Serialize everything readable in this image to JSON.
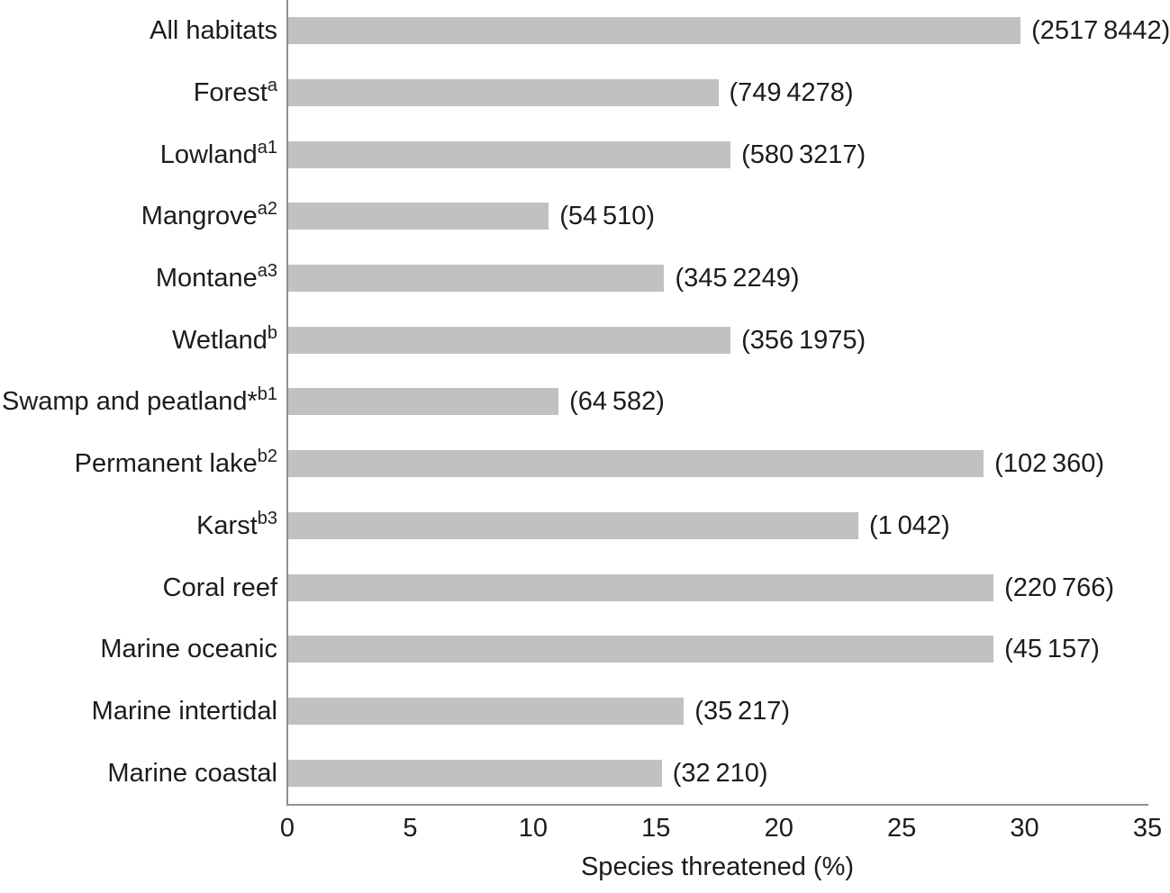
{
  "chart_data": {
    "type": "bar",
    "orientation": "horizontal",
    "title": "",
    "xlabel": "Species threatened (%)",
    "ylabel": "",
    "xlim": [
      0,
      35
    ],
    "xticks": [
      "0",
      "5",
      "10",
      "15",
      "20",
      "25",
      "30",
      "35"
    ],
    "xtick_values": [
      0,
      5,
      10,
      15,
      20,
      25,
      30,
      35
    ],
    "grid": false,
    "legend": "none",
    "bar_color": "#c1c1c1",
    "axis_color": "#8f8f8f",
    "text_color": "#1c1c1c",
    "categories": [
      {
        "label": "All habitats",
        "sup": "",
        "value": 29.8,
        "annotation": "(2517 8442)"
      },
      {
        "label": "Forest",
        "sup": "a",
        "value": 17.5,
        "annotation": "(749 4278)"
      },
      {
        "label": "Lowland",
        "sup": "a1",
        "value": 18.0,
        "annotation": "(580 3217)"
      },
      {
        "label": "Mangrove",
        "sup": "a2",
        "value": 10.6,
        "annotation": "(54 510)"
      },
      {
        "label": "Montane",
        "sup": "a3",
        "value": 15.3,
        "annotation": "(345 2249)"
      },
      {
        "label": "Wetland",
        "sup": "b",
        "value": 18.0,
        "annotation": "(356 1975)"
      },
      {
        "label": "Swamp and peatland*",
        "sup": "b1",
        "value": 11.0,
        "annotation": "(64 582)"
      },
      {
        "label": "Permanent lake",
        "sup": "b2",
        "value": 28.3,
        "annotation": "(102 360)"
      },
      {
        "label": "Karst",
        "sup": "b3",
        "value": 23.2,
        "annotation": "(1 042)"
      },
      {
        "label": "Coral reef",
        "sup": "",
        "value": 28.7,
        "annotation": "(220 766)"
      },
      {
        "label": "Marine oceanic",
        "sup": "",
        "value": 28.7,
        "annotation": "(45 157)"
      },
      {
        "label": "Marine intertidal",
        "sup": "",
        "value": 16.1,
        "annotation": "(35 217)"
      },
      {
        "label": "Marine coastal",
        "sup": "",
        "value": 15.2,
        "annotation": "(32 210)"
      }
    ]
  }
}
